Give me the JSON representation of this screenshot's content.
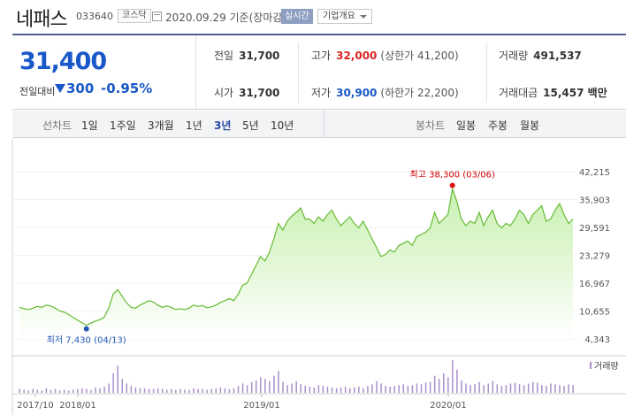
{
  "header": {
    "stock_name": "네패스",
    "stock_code": "033640",
    "market": "코스닥",
    "date_text": "2020.09.29 기준(장마감)",
    "realtime_label": "실시간",
    "company_label": "기업개요"
  },
  "summary": {
    "current_price": "31,400",
    "change_label": "전일대비",
    "change_amount": "300",
    "change_rate": "-0.95%",
    "prev_close_label": "전일",
    "prev_close": "31,700",
    "open_label": "시가",
    "open": "31,700",
    "high_label": "고가",
    "high": "32,000",
    "upper_limit": "(상한가 41,200)",
    "low_label": "저가",
    "low": "30,900",
    "lower_limit": "(하한가 22,200)",
    "volume_label": "거래량",
    "volume": "491,537",
    "amount_label": "거래대금",
    "amount": "15,457 백만"
  },
  "toolbar": {
    "line_label": "선차트",
    "periods": [
      "1일",
      "1주일",
      "3개월",
      "1년",
      "3년",
      "5년",
      "10년"
    ],
    "active_period": "3년",
    "candle_label": "봉차트",
    "candles": [
      "일봉",
      "주봉",
      "월봉"
    ]
  },
  "colors": {
    "accent": "#1958c8",
    "up": "#dd2222",
    "line": "#66bb33",
    "area": "#c8f0b0",
    "volume": "#a98fca"
  },
  "chart_data": {
    "type": "area",
    "x_ticks": [
      "2017/10",
      "2018/01",
      "2019/01",
      "2020/01"
    ],
    "y_ticks": [
      "42,215",
      "35,903",
      "29,591",
      "23,279",
      "16,967",
      "10,655",
      "4,343"
    ],
    "ylim": [
      4343,
      42215
    ],
    "high_annotation": "최고 38,300 (03/06)",
    "low_annotation": "최저 7,430 (04/13)",
    "volume_legend": "거래량",
    "series": [
      {
        "values": [
          11500,
          11200,
          11000,
          11300,
          11700,
          11500,
          12000,
          11800,
          11300,
          10700,
          10400,
          9900,
          9200,
          8600,
          8000,
          7430,
          7900,
          8400,
          8700,
          9300,
          11300,
          14500,
          15500,
          14000,
          12500,
          11500,
          11300,
          12000,
          12500,
          13000,
          12700,
          12000,
          11500,
          11800,
          11500,
          11000,
          11200,
          11000,
          11300,
          12000,
          11700,
          11900,
          11400,
          11600,
          12000,
          12600,
          13000,
          13500,
          13000,
          14500,
          16500,
          17000,
          19000,
          21000,
          23000,
          22000,
          24000,
          27000,
          30500,
          29000,
          31000,
          32200,
          33000,
          34000,
          31500,
          31500,
          30500,
          32000,
          31000,
          32500,
          33500,
          31500,
          30000,
          31000,
          32000,
          30500,
          29500,
          31000,
          29000,
          27000,
          25000,
          23000,
          23500,
          24500,
          24000,
          25500,
          26000,
          26500,
          25500,
          27500,
          28000,
          28500,
          29500,
          33000,
          30500,
          31500,
          32500,
          38300,
          35500,
          31500,
          30000,
          31000,
          30500,
          33000,
          30000,
          32000,
          33500,
          30500,
          29500,
          30500,
          30000,
          31500,
          33500,
          32500,
          30500,
          32500,
          33500,
          34500,
          31000,
          31500,
          33500,
          35000,
          32500,
          30500,
          31500
        ]
      }
    ],
    "volume": [
      5,
      4,
      3,
      5,
      4,
      3,
      6,
      4,
      5,
      3,
      4,
      3,
      4,
      5,
      6,
      5,
      4,
      7,
      6,
      8,
      12,
      25,
      35,
      18,
      12,
      9,
      7,
      6,
      6,
      5,
      5,
      6,
      5,
      4,
      5,
      4,
      5,
      4,
      4,
      6,
      5,
      5,
      4,
      5,
      6,
      7,
      6,
      5,
      6,
      9,
      12,
      10,
      14,
      16,
      20,
      18,
      15,
      22,
      28,
      14,
      10,
      12,
      15,
      11,
      9,
      8,
      7,
      10,
      9,
      8,
      7,
      6,
      7,
      8,
      6,
      7,
      8,
      6,
      9,
      11,
      15,
      12,
      9,
      8,
      9,
      10,
      11,
      9,
      10,
      12,
      11,
      13,
      14,
      22,
      18,
      25,
      20,
      42,
      30,
      16,
      12,
      10,
      11,
      14,
      10,
      12,
      15,
      11,
      9,
      10,
      12,
      13,
      11,
      10,
      12,
      14,
      13,
      10,
      9,
      12,
      11,
      10,
      9,
      11,
      10
    ]
  }
}
